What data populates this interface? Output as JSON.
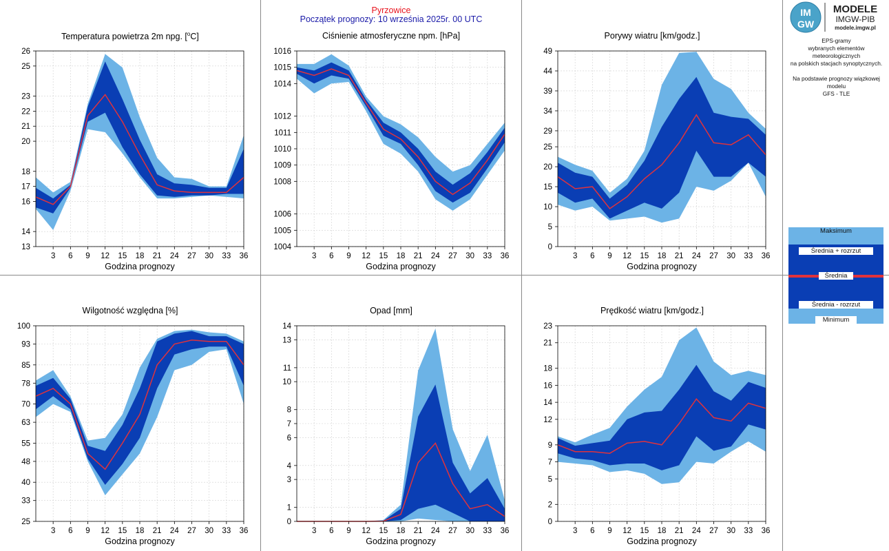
{
  "header": {
    "station": "Pyrzowice",
    "forecast_start": "Początek prognozy: 10 września 2025r. 00 UTC"
  },
  "logo": {
    "badge_top": "IM",
    "badge_bottom": "GW",
    "title": "MODELE",
    "subtitle": "IMGW-PIB",
    "url": "modele.imgw.pl"
  },
  "side_text": {
    "line1": "EPS-gramy",
    "line2": "wybranych elementów meteorologicznych",
    "line3": "na polskich stacjach  synoptycznych.",
    "line4": "Na podstawie prognozy wiązkowej modelu",
    "line5": "GFS - TLE"
  },
  "legend": {
    "max": "Maksimum",
    "mean_plus": "Średnia + rozrzut",
    "mean": "Średnia",
    "mean_minus": "Średnia - rozrzut",
    "min": "Minimum"
  },
  "colors": {
    "outer_band": "#6cb3e6",
    "inner_band": "#0a3eb4",
    "mean_line": "#e0323c",
    "panel_border": "#888888",
    "grid": "#d0d0d0"
  },
  "chart_data": [
    {
      "id": "temp",
      "type": "area",
      "title": "Temperatura powietrza 2m npg. [°C]",
      "title_main": "Temperatura powietrza 2m npg. [",
      "title_sup": "o",
      "title_end": "C]",
      "xlabel": "Godzina prognozy",
      "x": [
        0,
        3,
        6,
        9,
        12,
        15,
        18,
        21,
        24,
        27,
        30,
        33,
        36
      ],
      "xticks": [
        3,
        6,
        9,
        12,
        15,
        18,
        21,
        24,
        27,
        30,
        33,
        36
      ],
      "ylim": [
        13,
        26
      ],
      "yticks": [
        13,
        14,
        16,
        17,
        18,
        20,
        21,
        22,
        23,
        25,
        26
      ],
      "series": {
        "max": [
          17.6,
          16.6,
          17.3,
          22.5,
          25.8,
          24.9,
          21.6,
          18.9,
          17.6,
          17.5,
          17.0,
          17.0,
          20.4
        ],
        "mean_plus": [
          16.9,
          16.2,
          17.1,
          22.3,
          25.3,
          22.8,
          20.1,
          17.8,
          17.2,
          17.1,
          16.9,
          16.9,
          19.5
        ],
        "mean": [
          16.3,
          15.8,
          17.0,
          21.7,
          23.1,
          21.3,
          19.1,
          17.1,
          16.7,
          16.6,
          16.6,
          16.6,
          17.6
        ],
        "mean_minus": [
          15.6,
          15.2,
          16.9,
          21.3,
          21.9,
          19.6,
          17.8,
          16.4,
          16.3,
          16.4,
          16.4,
          16.5,
          16.5
        ],
        "min": [
          15.5,
          14.1,
          16.7,
          20.8,
          20.6,
          19.2,
          17.6,
          16.2,
          16.2,
          16.3,
          16.4,
          16.3,
          16.2
        ]
      }
    },
    {
      "id": "pressure",
      "type": "area",
      "title": "Ciśnienie atmosferyczne npm. [hPa]",
      "xlabel": "Godzina prognozy",
      "x": [
        0,
        3,
        6,
        9,
        12,
        15,
        18,
        21,
        24,
        27,
        30,
        33,
        36
      ],
      "xticks": [
        3,
        6,
        9,
        12,
        15,
        18,
        21,
        24,
        27,
        30,
        33,
        36
      ],
      "ylim": [
        1004,
        1016
      ],
      "yticks": [
        1004,
        1005,
        1006,
        1008,
        1009,
        1010,
        1011,
        1012,
        1014,
        1015,
        1016
      ],
      "series": {
        "max": [
          1015.2,
          1015.2,
          1015.8,
          1015.1,
          1013.2,
          1012.0,
          1011.5,
          1010.7,
          1009.5,
          1008.6,
          1009.0,
          1010.3,
          1011.6
        ],
        "mean_plus": [
          1015.0,
          1014.8,
          1015.3,
          1014.8,
          1013.0,
          1011.6,
          1011.0,
          1010.0,
          1008.6,
          1007.8,
          1008.5,
          1009.8,
          1011.3
        ],
        "mean": [
          1014.8,
          1014.5,
          1014.9,
          1014.5,
          1012.8,
          1011.2,
          1010.6,
          1009.5,
          1008.0,
          1007.2,
          1007.9,
          1009.3,
          1010.9
        ],
        "mean_minus": [
          1014.6,
          1014.0,
          1014.5,
          1014.3,
          1012.6,
          1010.8,
          1010.3,
          1009.0,
          1007.4,
          1006.7,
          1007.3,
          1008.8,
          1010.4
        ],
        "min": [
          1014.3,
          1013.4,
          1014.0,
          1014.1,
          1012.3,
          1010.3,
          1009.7,
          1008.6,
          1006.9,
          1006.2,
          1006.9,
          1008.4,
          1009.9
        ]
      }
    },
    {
      "id": "gusts",
      "type": "area",
      "title": "Porywy wiatru [km/godz.]",
      "xlabel": "Godzina prognozy",
      "x": [
        0,
        3,
        6,
        9,
        12,
        15,
        18,
        21,
        24,
        27,
        30,
        33,
        36
      ],
      "xticks": [
        3,
        6,
        9,
        12,
        15,
        18,
        21,
        24,
        27,
        30,
        33,
        36
      ],
      "ylim": [
        0,
        49
      ],
      "yticks": [
        0,
        5,
        10,
        15,
        20,
        25,
        29,
        34,
        39,
        44,
        49
      ],
      "series": {
        "max": [
          22.5,
          20.5,
          19.0,
          13.5,
          17.0,
          24.0,
          40.5,
          48.5,
          48.8,
          42.0,
          39.5,
          33.5,
          29.5
        ],
        "mean_plus": [
          21.0,
          18.5,
          17.5,
          12.0,
          15.5,
          21.5,
          30.0,
          37.0,
          42.5,
          33.5,
          32.5,
          32.0,
          28.0
        ],
        "mean": [
          17.5,
          14.5,
          15.0,
          9.5,
          12.5,
          17.0,
          20.5,
          26.0,
          33.0,
          26.0,
          25.5,
          28.0,
          23.0
        ],
        "mean_minus": [
          13.5,
          11.0,
          12.0,
          7.0,
          9.0,
          11.0,
          9.5,
          13.5,
          24.0,
          17.5,
          17.5,
          21.0,
          17.5
        ],
        "min": [
          10.5,
          9.0,
          10.0,
          6.5,
          7.0,
          7.5,
          6.0,
          7.0,
          15.0,
          14.0,
          16.5,
          21.0,
          12.5
        ]
      }
    },
    {
      "id": "humidity",
      "type": "area",
      "title": "Wilgotność względna [%]",
      "xlabel": "Godzina prognozy",
      "x": [
        0,
        3,
        6,
        9,
        12,
        15,
        18,
        21,
        24,
        27,
        30,
        33,
        36
      ],
      "xticks": [
        3,
        6,
        9,
        12,
        15,
        18,
        21,
        24,
        27,
        30,
        33,
        36
      ],
      "ylim": [
        25,
        100
      ],
      "yticks": [
        25,
        33,
        40,
        48,
        55,
        63,
        70,
        78,
        85,
        93,
        100
      ],
      "series": {
        "max": [
          79.0,
          83.0,
          73.0,
          56.0,
          57.0,
          66.0,
          84.0,
          95.0,
          98.0,
          98.5,
          97.5,
          97.0,
          94.0
        ],
        "mean_plus": [
          77.0,
          80.0,
          72.0,
          54.0,
          52.0,
          62.0,
          76.0,
          94.0,
          97.0,
          98.0,
          96.0,
          96.0,
          93.0
        ],
        "mean": [
          73.0,
          76.0,
          70.0,
          51.0,
          45.0,
          55.0,
          66.0,
          85.0,
          93.0,
          94.5,
          94.0,
          94.0,
          85.0
        ],
        "mean_minus": [
          68.0,
          73.0,
          68.0,
          49.0,
          39.0,
          47.0,
          57.0,
          76.0,
          89.0,
          91.0,
          92.0,
          92.0,
          77.0
        ],
        "min": [
          65.0,
          70.0,
          67.0,
          48.0,
          35.0,
          43.0,
          51.0,
          65.0,
          83.0,
          85.0,
          90.0,
          91.0,
          70.0
        ]
      }
    },
    {
      "id": "precip",
      "type": "area",
      "title": "Opad [mm]",
      "xlabel": "Godzina prognozy",
      "x": [
        0,
        3,
        6,
        9,
        12,
        15,
        18,
        21,
        24,
        27,
        30,
        33,
        36
      ],
      "xticks": [
        3,
        6,
        9,
        12,
        15,
        18,
        21,
        24,
        27,
        30,
        33,
        36
      ],
      "ylim": [
        0,
        14
      ],
      "yticks": [
        0,
        1,
        3,
        4,
        6,
        7,
        8,
        10,
        11,
        13,
        14
      ],
      "series": {
        "max": [
          0,
          0,
          0,
          0,
          0,
          0.1,
          1.2,
          10.8,
          13.8,
          6.6,
          3.6,
          6.2,
          1.5
        ],
        "mean_plus": [
          0,
          0,
          0,
          0,
          0,
          0.05,
          0.9,
          7.5,
          9.8,
          4.2,
          2.0,
          3.1,
          0.9
        ],
        "mean": [
          0,
          0,
          0,
          0,
          0,
          0.02,
          0.5,
          4.2,
          5.6,
          2.7,
          0.9,
          1.2,
          0.35
        ],
        "mean_minus": [
          0,
          0,
          0,
          0,
          0,
          0,
          0.1,
          0.9,
          1.2,
          0.6,
          0,
          0,
          0
        ],
        "min": [
          0,
          0,
          0,
          0,
          0,
          0,
          0,
          0.2,
          0.1,
          0,
          0,
          0,
          0
        ]
      }
    },
    {
      "id": "wind",
      "type": "area",
      "title": "Prędkość wiatru [km/godz.]",
      "xlabel": "Godzina prognozy",
      "x": [
        0,
        3,
        6,
        9,
        12,
        15,
        18,
        21,
        24,
        27,
        30,
        33,
        36
      ],
      "xticks": [
        3,
        6,
        9,
        12,
        15,
        18,
        21,
        24,
        27,
        30,
        33,
        36
      ],
      "ylim": [
        0,
        23
      ],
      "yticks": [
        0,
        2,
        5,
        7,
        9,
        12,
        14,
        16,
        18,
        21,
        23
      ],
      "series": {
        "max": [
          10.0,
          9.3,
          10.2,
          11.0,
          13.5,
          15.5,
          17.0,
          21.3,
          22.8,
          18.8,
          17.2,
          17.7,
          17.2
        ],
        "mean_plus": [
          9.8,
          8.9,
          9.2,
          9.5,
          12.0,
          12.8,
          13.0,
          15.5,
          18.4,
          15.3,
          14.2,
          16.4,
          15.7
        ],
        "mean": [
          9.0,
          8.2,
          8.2,
          8.0,
          9.2,
          9.4,
          9.0,
          11.5,
          14.4,
          12.2,
          11.8,
          13.9,
          13.3
        ],
        "mean_minus": [
          8.0,
          7.4,
          7.2,
          6.6,
          6.8,
          6.8,
          6.0,
          6.6,
          10.0,
          8.3,
          8.8,
          11.4,
          10.8
        ],
        "min": [
          7.0,
          6.8,
          6.6,
          5.8,
          6.0,
          5.6,
          4.4,
          4.6,
          7.0,
          6.8,
          8.2,
          9.4,
          8.2
        ]
      }
    }
  ]
}
